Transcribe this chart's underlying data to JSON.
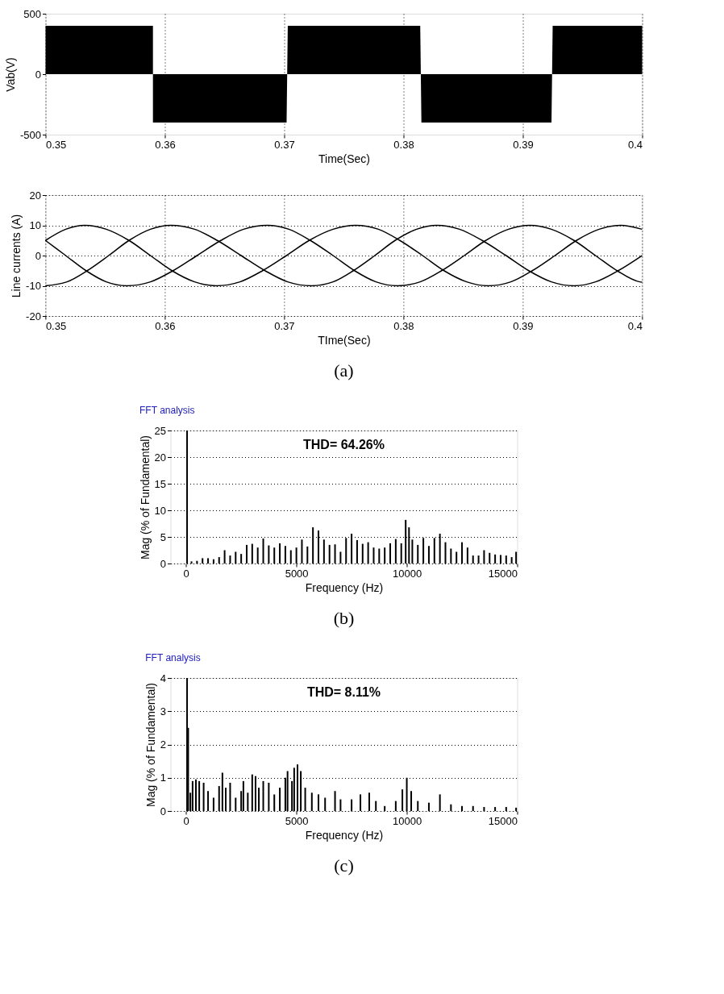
{
  "chart_data": [
    {
      "type": "area",
      "ylabel": "Vab(V)",
      "xlabel": "Time(Sec)",
      "xlim": [
        0.35,
        0.4
      ],
      "ylim": [
        -500,
        500
      ],
      "xticks": [
        0.35,
        0.36,
        0.37,
        0.38,
        0.39,
        0.4
      ],
      "yticks": [
        -500,
        0,
        500
      ],
      "grid": "x",
      "series": [
        {
          "color": "#000000",
          "x": [
            0.35,
            0.359,
            0.359,
            0.3702,
            0.3703,
            0.3814,
            0.3815,
            0.3924,
            0.3925,
            0.4
          ],
          "values": [
            400,
            400,
            -400,
            -400,
            400,
            400,
            -400,
            -400,
            400,
            400
          ]
        }
      ]
    },
    {
      "type": "line",
      "ylabel": "Line currents (A)",
      "xlabel": "TIme(Sec)",
      "xlim": [
        0.35,
        0.4
      ],
      "ylim": [
        -20,
        20
      ],
      "xticks": [
        0.35,
        0.36,
        0.37,
        0.38,
        0.39,
        0.4
      ],
      "yticks": [
        -20,
        -10,
        0,
        10,
        20
      ],
      "grid": true,
      "annotations": [
        "(a)"
      ],
      "series": [
        {
          "color": "#000000",
          "x": [
            0.35,
            0.3517,
            0.3534,
            0.3551,
            0.3568,
            0.3588,
            0.3607,
            0.3627,
            0.3647,
            0.3666,
            0.3686,
            0.3704,
            0.3722,
            0.3741,
            0.3759,
            0.3777,
            0.3795,
            0.3814,
            0.3832,
            0.3851,
            0.3869,
            0.3888,
            0.3906,
            0.3924,
            0.3943,
            0.3961,
            0.3979,
            0.3998,
            0.4
          ],
          "values": [
            5,
            0,
            -5,
            -8.7,
            -10,
            -8.7,
            -5,
            0,
            5,
            8.7,
            10,
            8.7,
            5,
            0,
            -5,
            -8.7,
            -10,
            -8.7,
            -5,
            0,
            5,
            8.7,
            10,
            8.7,
            5,
            0,
            -5,
            -8.7,
            -8.8
          ]
        },
        {
          "color": "#000000",
          "x": [
            0.35,
            0.3518,
            0.3535,
            0.3553,
            0.357,
            0.3588,
            0.3605,
            0.3625,
            0.3644,
            0.3664,
            0.3684,
            0.3703,
            0.3723,
            0.3741,
            0.3758,
            0.3776,
            0.3793,
            0.3811,
            0.3828,
            0.3847,
            0.3866,
            0.3886,
            0.3905,
            0.3924,
            0.3943,
            0.3961,
            0.398,
            0.4
          ],
          "values": [
            -10,
            -8.7,
            -5,
            0,
            5,
            8.7,
            10,
            8.7,
            5,
            0,
            -5,
            -8.7,
            -10,
            -8.7,
            -5,
            0,
            5,
            8.7,
            10,
            8.7,
            5,
            0,
            -5,
            -8.7,
            -10,
            -8.7,
            -5,
            0
          ]
        },
        {
          "color": "#000000",
          "x": [
            0.35,
            0.3517,
            0.3533,
            0.3551,
            0.357,
            0.3588,
            0.3606,
            0.3625,
            0.3643,
            0.3663,
            0.3682,
            0.3702,
            0.3721,
            0.3741,
            0.376,
            0.3779,
            0.3797,
            0.3816,
            0.3834,
            0.3853,
            0.3871,
            0.389,
            0.3908,
            0.3927,
            0.3945,
            0.3964,
            0.3982,
            0.4
          ],
          "values": [
            5,
            8.7,
            10,
            8.7,
            5,
            0,
            -5,
            -8.7,
            -10,
            -8.7,
            -5,
            0,
            5,
            8.7,
            10,
            8.7,
            5,
            0,
            -5,
            -8.7,
            -10,
            -8.7,
            -5,
            0,
            5,
            8.7,
            10,
            8.7
          ]
        }
      ]
    },
    {
      "type": "bar",
      "title": "FFT analysis",
      "ylabel": "Mag (% of Fundamental)",
      "xlabel": "Frequency (Hz)",
      "xlim": [
        -700,
        15000
      ],
      "ylim": [
        0,
        25
      ],
      "xticks": [
        0,
        5000,
        10000,
        15000
      ],
      "yticks": [
        0,
        5,
        10,
        15,
        20,
        25
      ],
      "grid": "y",
      "annotations": [
        "THD= 64.26%",
        "(b)"
      ],
      "series": [
        {
          "color": "#000000",
          "x": [
            50,
            250,
            500,
            750,
            1000,
            1250,
            1500,
            1750,
            2000,
            2250,
            2500,
            2750,
            3000,
            3250,
            3500,
            3750,
            4000,
            4250,
            4500,
            4750,
            5000,
            5250,
            5500,
            5750,
            6000,
            6250,
            6500,
            6750,
            7000,
            7250,
            7500,
            7750,
            8000,
            8250,
            8500,
            8750,
            9000,
            9250,
            9500,
            9750,
            9950,
            10100,
            10250,
            10500,
            10750,
            11000,
            11250,
            11500,
            11750,
            12000,
            12250,
            12500,
            12750,
            13000,
            13250,
            13500,
            13750,
            14000,
            14250,
            14500,
            14750,
            14950
          ],
          "values": [
            25,
            0.4,
            0.5,
            1.0,
            1.0,
            0.8,
            1.2,
            2.5,
            1.5,
            2.2,
            1.8,
            3.5,
            3.7,
            3.0,
            4.7,
            3.4,
            3.0,
            3.8,
            3.3,
            2.5,
            3.0,
            4.5,
            3.2,
            6.8,
            6.2,
            4.5,
            3.5,
            3.6,
            2.2,
            4.8,
            5.6,
            4.4,
            3.7,
            4.0,
            3.0,
            2.8,
            3.0,
            3.8,
            4.6,
            3.8,
            8.2,
            6.8,
            4.5,
            3.5,
            4.8,
            3.3,
            4.8,
            5.6,
            4.0,
            2.8,
            2.2,
            4.0,
            3.0,
            1.5,
            1.5,
            2.5,
            2.0,
            1.7,
            1.6,
            1.5,
            1.2,
            2.2
          ]
        }
      ]
    },
    {
      "type": "bar",
      "title": "FFT analysis",
      "ylabel": "Mag (% of Fundamental)",
      "xlabel": "Frequency (Hz)",
      "xlim": [
        -700,
        15000
      ],
      "ylim": [
        0,
        4
      ],
      "xticks": [
        0,
        5000,
        10000,
        15000
      ],
      "yticks": [
        0,
        1,
        2,
        3,
        4
      ],
      "grid": "y",
      "annotations": [
        "THD= 8.11%",
        "(c)"
      ],
      "series": [
        {
          "color": "#000000",
          "x": [
            50,
            100,
            200,
            300,
            450,
            600,
            800,
            1000,
            1250,
            1500,
            1650,
            1800,
            2000,
            2250,
            2500,
            2600,
            2800,
            3000,
            3150,
            3300,
            3500,
            3750,
            4000,
            4250,
            4500,
            4600,
            4800,
            4900,
            5050,
            5200,
            5400,
            5700,
            6000,
            6300,
            6750,
            7000,
            7500,
            7900,
            8300,
            8600,
            9000,
            9500,
            9800,
            10000,
            10200,
            10500,
            11000,
            11500,
            12000,
            12500,
            13000,
            13500,
            14000,
            14500,
            14950
          ],
          "values": [
            4,
            2.5,
            0.55,
            0.9,
            0.95,
            0.9,
            0.85,
            0.6,
            0.4,
            0.75,
            1.15,
            0.7,
            0.85,
            0.4,
            0.6,
            0.9,
            0.55,
            1.1,
            1.05,
            0.7,
            0.9,
            0.85,
            0.5,
            0.7,
            1.0,
            1.2,
            0.9,
            1.3,
            1.4,
            1.2,
            0.7,
            0.55,
            0.5,
            0.4,
            0.6,
            0.35,
            0.35,
            0.5,
            0.55,
            0.3,
            0.15,
            0.3,
            0.65,
            1.0,
            0.6,
            0.3,
            0.25,
            0.5,
            0.2,
            0.15,
            0.15,
            0.12,
            0.12,
            0.12,
            0.1
          ]
        }
      ]
    }
  ]
}
